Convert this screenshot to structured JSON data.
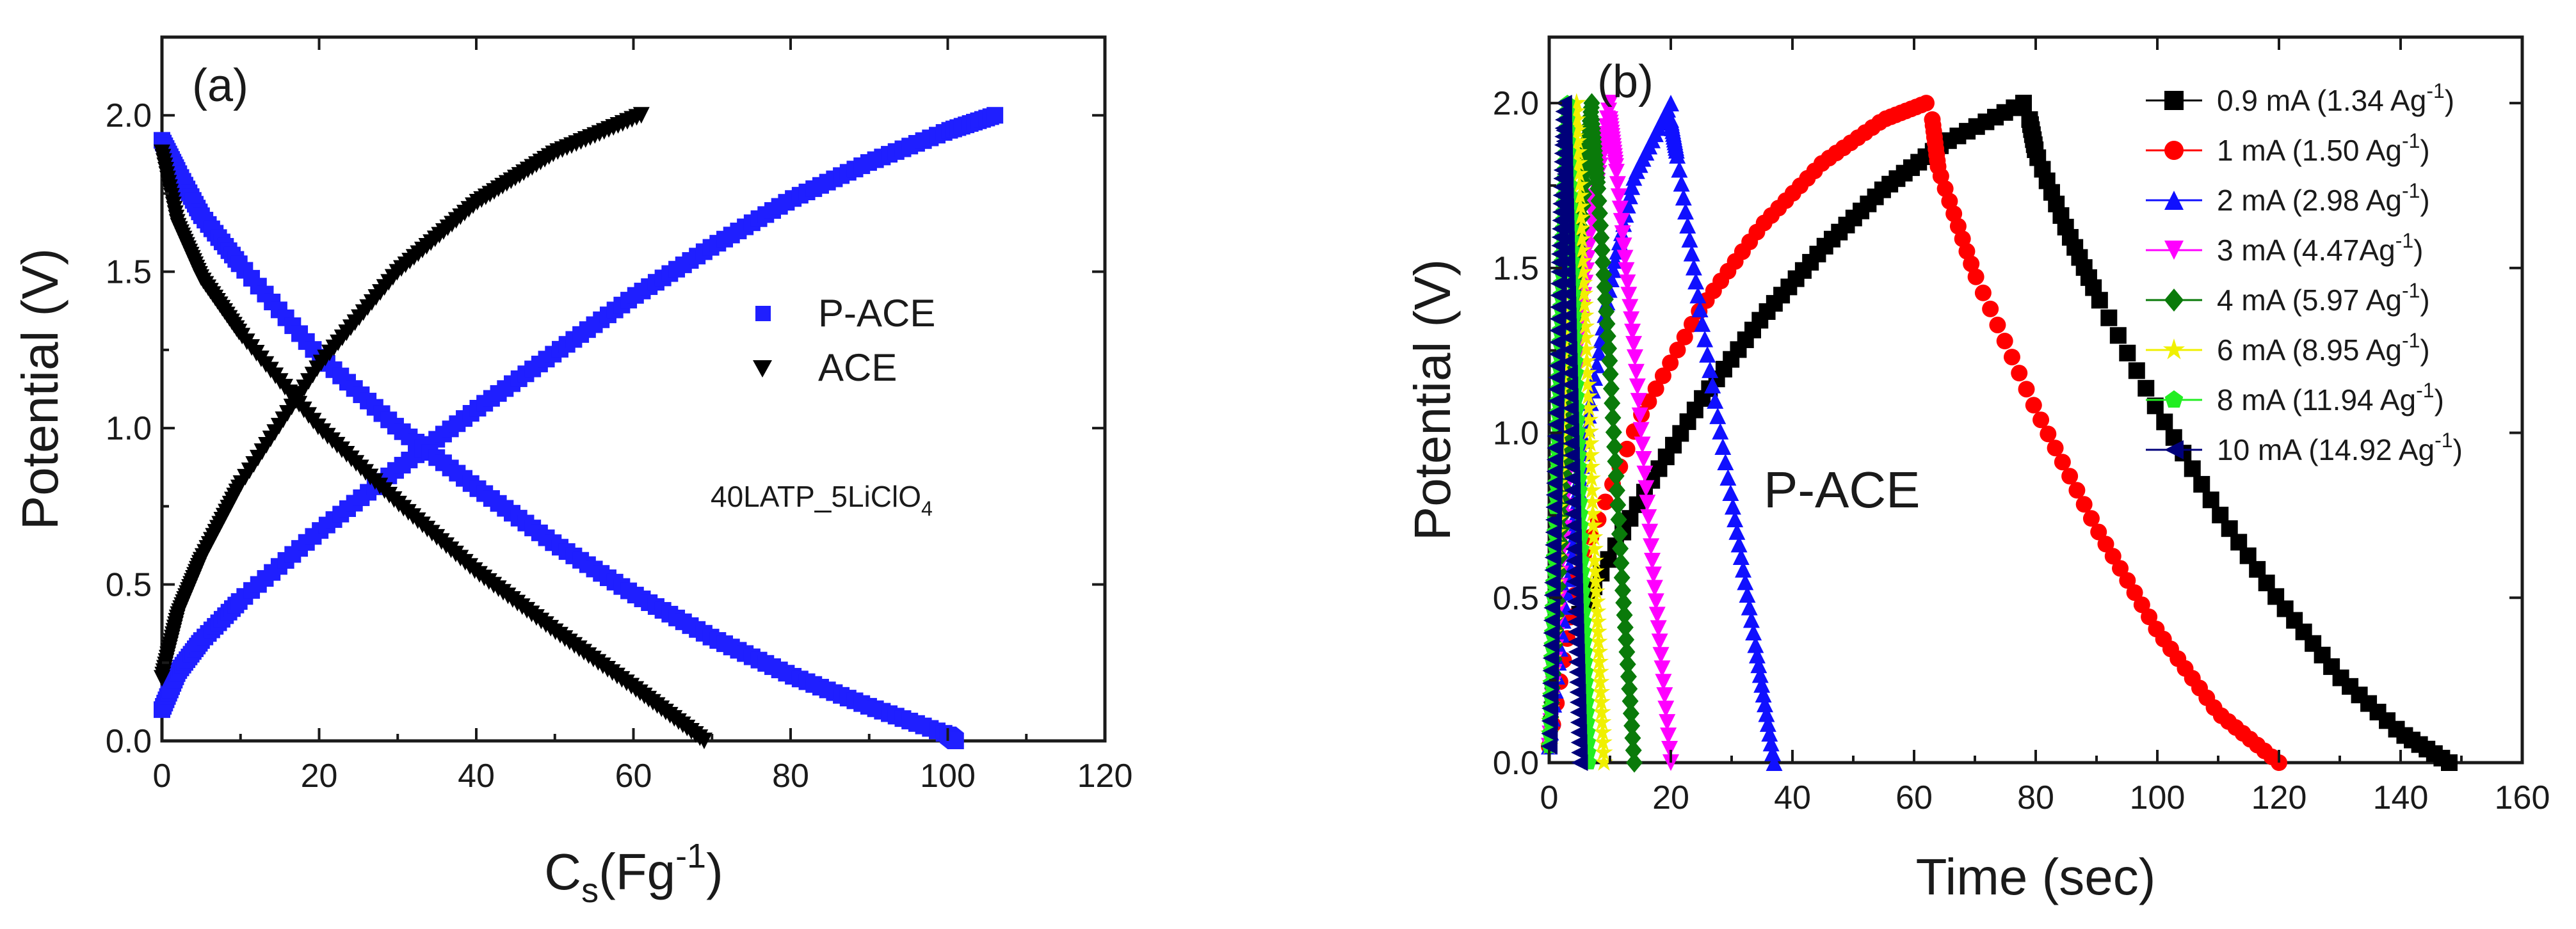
{
  "chart_data": [
    {
      "type": "scatter",
      "panel_label": "(a)",
      "xlabel": {
        "main": "C",
        "sub": "s",
        "rest": "(Fg",
        "sup": "-1",
        "end": ")"
      },
      "ylabel": "Potential (V)",
      "xlim": [
        0,
        120
      ],
      "ylim": [
        0,
        2.25
      ],
      "xticks": [
        0,
        20,
        40,
        60,
        80,
        100,
        120
      ],
      "yticks": [
        0.0,
        0.5,
        1.0,
        1.5,
        2.0
      ],
      "xtick_labels": [
        "0",
        "20",
        "40",
        "60",
        "80",
        "100",
        "120"
      ],
      "ytick_labels": [
        "0.0",
        "0.5",
        "1.0",
        "1.5",
        "2.0"
      ],
      "annotation": {
        "main": "40LATP_5LiClO",
        "sub": "4"
      },
      "legend_position": "center-right",
      "series": [
        {
          "name": "P-ACE",
          "color": "#1f1fff",
          "marker": "square",
          "charge": {
            "x": [
              0,
              2,
              5,
              10,
              20,
              30,
              40,
              50,
              60,
              70,
              80,
              90,
              100,
              106
            ],
            "y": [
              0.1,
              0.22,
              0.32,
              0.45,
              0.67,
              0.87,
              1.06,
              1.24,
              1.42,
              1.58,
              1.73,
              1.85,
              1.95,
              2.0
            ]
          },
          "discharge": {
            "x": [
              0,
              2,
              5,
              10,
              20,
              30,
              40,
              50,
              60,
              70,
              80,
              90,
              100,
              101
            ],
            "y": [
              1.92,
              1.82,
              1.68,
              1.52,
              1.23,
              1.0,
              0.81,
              0.63,
              0.47,
              0.33,
              0.21,
              0.11,
              0.02,
              0.0
            ]
          }
        },
        {
          "name": "ACE",
          "color": "#000000",
          "marker": "triangle-down",
          "charge": {
            "x": [
              0,
              2,
              5,
              10,
              20,
              30,
              40,
              50,
              61
            ],
            "y": [
              0.2,
              0.4,
              0.58,
              0.82,
              1.2,
              1.5,
              1.72,
              1.88,
              2.0
            ]
          },
          "discharge": {
            "x": [
              0,
              2,
              5,
              10,
              20,
              30,
              40,
              50,
              60,
              69
            ],
            "y": [
              1.88,
              1.65,
              1.48,
              1.3,
              1.0,
              0.76,
              0.54,
              0.35,
              0.17,
              0.0
            ]
          }
        }
      ]
    },
    {
      "type": "scatter",
      "panel_label": "(b)",
      "xlabel": "Time (sec)",
      "ylabel": "Potential (V)",
      "xlim": [
        0,
        160
      ],
      "ylim": [
        0,
        2.2
      ],
      "xticks": [
        0,
        20,
        40,
        60,
        80,
        100,
        120,
        140,
        160
      ],
      "yticks": [
        0.0,
        0.5,
        1.0,
        1.5,
        2.0
      ],
      "xtick_labels": [
        "0",
        "20",
        "40",
        "60",
        "80",
        "100",
        "120",
        "140",
        "160"
      ],
      "ytick_labels": [
        "0.0",
        "0.5",
        "1.0",
        "1.5",
        "2.0"
      ],
      "annotation": "P-ACE",
      "legend_position": "top-right",
      "series": [
        {
          "name_main": "0.9 mA (1.34 Ag",
          "name_sup": "-1",
          "name_end": ")",
          "color": "#000000",
          "marker": "square",
          "charge": {
            "x": [
              5,
              15,
              25,
              35,
              45,
              55,
              65,
              78
            ],
            "y": [
              0.45,
              0.8,
              1.1,
              1.35,
              1.56,
              1.74,
              1.88,
              2.0
            ]
          },
          "discharge": {
            "x": [
              79,
              80,
              85,
              90,
              100,
              110,
              120,
              130,
              140,
              148
            ],
            "y": [
              1.95,
              1.85,
              1.62,
              1.42,
              1.07,
              0.76,
              0.49,
              0.26,
              0.09,
              0.0
            ]
          }
        },
        {
          "name_main": "1 mA (1.50 Ag",
          "name_sup": "-1",
          "name_end": ")",
          "color": "#ff0000",
          "marker": "circle",
          "charge": {
            "x": [
              0,
              5,
              15,
              25,
              35,
              45,
              55,
              62
            ],
            "y": [
              0.05,
              0.6,
              1.05,
              1.38,
              1.63,
              1.82,
              1.95,
              2.0
            ]
          },
          "discharge": {
            "x": [
              63,
              64,
              70,
              80,
              90,
              100,
              110,
              120
            ],
            "y": [
              1.95,
              1.8,
              1.48,
              1.07,
              0.71,
              0.4,
              0.15,
              0.0
            ]
          }
        },
        {
          "name_main": "2 mA (2.98 Ag",
          "name_sup": "-1",
          "name_end": ")",
          "color": "#1010ff",
          "marker": "triangle-up",
          "charge": {
            "x": [
              0,
              3,
              6,
              10,
              14,
              20
            ],
            "y": [
              0.05,
              0.55,
              1.0,
              1.45,
              1.78,
              2.0
            ]
          },
          "discharge": {
            "x": [
              20,
              21,
              25,
              30,
              34,
              37
            ],
            "y": [
              1.95,
              1.85,
              1.35,
              0.8,
              0.35,
              0.0
            ]
          }
        },
        {
          "name_main": "3 mA (4.47Ag",
          "name_sup": "-1",
          "name_end": ")",
          "color": "#ff00ff",
          "marker": "triangle-down",
          "charge": {
            "x": [
              0,
              2,
              4,
              7,
              10
            ],
            "y": [
              0.05,
              0.6,
              1.1,
              1.65,
              2.0
            ]
          },
          "discharge": {
            "x": [
              10,
              11,
              14,
              17,
              20
            ],
            "y": [
              1.95,
              1.8,
              1.25,
              0.6,
              0.0
            ]
          }
        },
        {
          "name_main": "4 mA (5.97 Ag",
          "name_sup": "-1",
          "name_end": ")",
          "color": "#0a7a0a",
          "marker": "diamond",
          "charge": {
            "x": [
              0,
              2,
              4,
              6,
              7
            ],
            "y": [
              0.05,
              0.7,
              1.3,
              1.8,
              2.0
            ]
          },
          "discharge": {
            "x": [
              7,
              8,
              10,
              12,
              14
            ],
            "y": [
              1.95,
              1.75,
              1.2,
              0.55,
              0.0
            ]
          }
        },
        {
          "name_main": "6 mA (8.95 Ag",
          "name_sup": "-1",
          "name_end": ")",
          "color": "#f0f000",
          "marker": "star",
          "charge": {
            "x": [
              0,
              1.5,
              3,
              4.5
            ],
            "y": [
              0.05,
              0.8,
              1.5,
              2.0
            ]
          },
          "discharge": {
            "x": [
              4.5,
              6,
              7.5,
              9
            ],
            "y": [
              1.95,
              1.3,
              0.6,
              0.0
            ]
          }
        },
        {
          "name_main": "8 mA (11.94 Ag",
          "name_sup": "-1",
          "name_end": ")",
          "color": "#22ee22",
          "marker": "pentagon",
          "charge": {
            "x": [
              0,
              1,
              2,
              3
            ],
            "y": [
              0.05,
              0.8,
              1.5,
              2.0
            ]
          },
          "discharge": {
            "x": [
              3,
              4.2,
              5.4,
              6.5
            ],
            "y": [
              1.95,
              1.3,
              0.6,
              0.0
            ]
          }
        },
        {
          "name_main": "10 mA (14.92 Ag",
          "name_sup": "-1",
          "name_end": ")",
          "color": "#00007a",
          "marker": "triangle-left",
          "charge": {
            "x": [
              0,
              0.8,
              1.6,
              2.4
            ],
            "y": [
              0.05,
              0.8,
              1.5,
              2.0
            ]
          },
          "discharge": {
            "x": [
              2.4,
              3.2,
              4.1,
              5
            ],
            "y": [
              1.95,
              1.3,
              0.6,
              0.0
            ]
          }
        }
      ]
    }
  ]
}
